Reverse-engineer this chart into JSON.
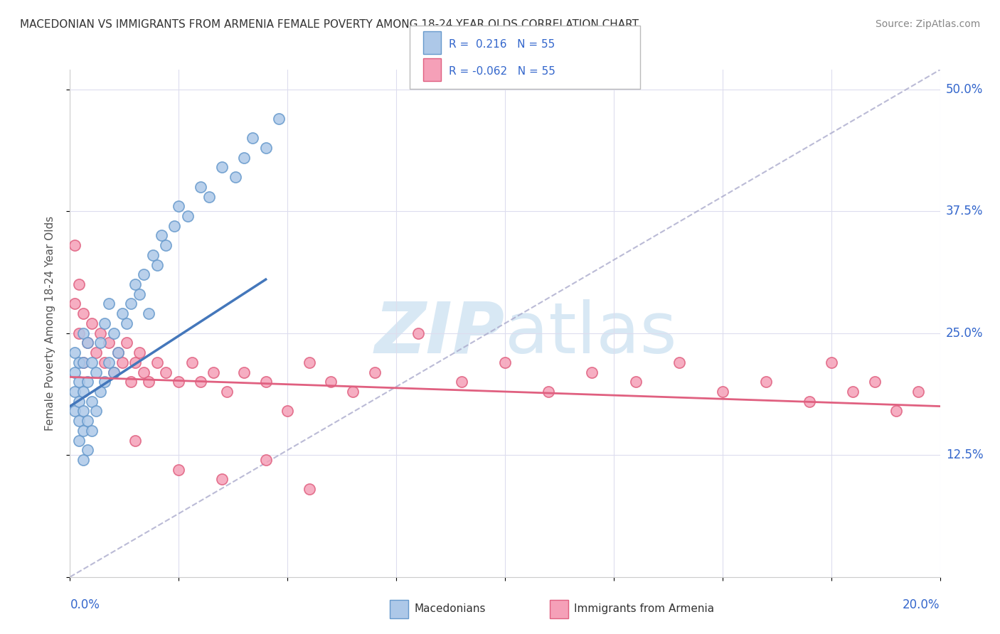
{
  "title": "MACEDONIAN VS IMMIGRANTS FROM ARMENIA FEMALE POVERTY AMONG 18-24 YEAR OLDS CORRELATION CHART",
  "source": "Source: ZipAtlas.com",
  "ylabel": "Female Poverty Among 18-24 Year Olds",
  "yticks": [
    0.0,
    0.125,
    0.25,
    0.375,
    0.5
  ],
  "ytick_labels": [
    "",
    "12.5%",
    "25.0%",
    "37.5%",
    "50.0%"
  ],
  "macedonian_color": "#adc8e8",
  "armenian_color": "#f5a0b8",
  "macedonian_edge_color": "#6699cc",
  "armenian_edge_color": "#e06080",
  "macedonian_line_color": "#4477bb",
  "armenian_line_color": "#e06080",
  "dash_color": "#aaaacc",
  "watermark_color": "#c8dff0",
  "legend_r_mac": "R =  0.216",
  "legend_n_mac": "N = 55",
  "legend_r_arm": "R = -0.062",
  "legend_n_arm": "N = 55",
  "mac_x": [
    0.001,
    0.001,
    0.001,
    0.001,
    0.002,
    0.002,
    0.002,
    0.002,
    0.002,
    0.003,
    0.003,
    0.003,
    0.003,
    0.003,
    0.003,
    0.004,
    0.004,
    0.004,
    0.004,
    0.005,
    0.005,
    0.005,
    0.006,
    0.006,
    0.007,
    0.007,
    0.008,
    0.008,
    0.009,
    0.009,
    0.01,
    0.01,
    0.011,
    0.012,
    0.013,
    0.014,
    0.015,
    0.016,
    0.017,
    0.018,
    0.019,
    0.02,
    0.021,
    0.022,
    0.024,
    0.025,
    0.027,
    0.03,
    0.032,
    0.035,
    0.038,
    0.04,
    0.042,
    0.045,
    0.048
  ],
  "mac_y": [
    0.17,
    0.19,
    0.21,
    0.23,
    0.14,
    0.16,
    0.18,
    0.2,
    0.22,
    0.12,
    0.15,
    0.17,
    0.19,
    0.22,
    0.25,
    0.13,
    0.16,
    0.2,
    0.24,
    0.15,
    0.18,
    0.22,
    0.17,
    0.21,
    0.19,
    0.24,
    0.2,
    0.26,
    0.22,
    0.28,
    0.21,
    0.25,
    0.23,
    0.27,
    0.26,
    0.28,
    0.3,
    0.29,
    0.31,
    0.27,
    0.33,
    0.32,
    0.35,
    0.34,
    0.36,
    0.38,
    0.37,
    0.4,
    0.39,
    0.42,
    0.41,
    0.43,
    0.45,
    0.44,
    0.47
  ],
  "arm_x": [
    0.001,
    0.001,
    0.002,
    0.002,
    0.003,
    0.003,
    0.004,
    0.005,
    0.006,
    0.007,
    0.008,
    0.009,
    0.01,
    0.011,
    0.012,
    0.013,
    0.014,
    0.015,
    0.016,
    0.017,
    0.018,
    0.02,
    0.022,
    0.025,
    0.028,
    0.03,
    0.033,
    0.036,
    0.04,
    0.045,
    0.05,
    0.055,
    0.06,
    0.065,
    0.07,
    0.08,
    0.09,
    0.1,
    0.11,
    0.12,
    0.13,
    0.14,
    0.15,
    0.16,
    0.17,
    0.175,
    0.18,
    0.185,
    0.19,
    0.195,
    0.015,
    0.025,
    0.035,
    0.045,
    0.055
  ],
  "arm_y": [
    0.28,
    0.34,
    0.25,
    0.3,
    0.22,
    0.27,
    0.24,
    0.26,
    0.23,
    0.25,
    0.22,
    0.24,
    0.21,
    0.23,
    0.22,
    0.24,
    0.2,
    0.22,
    0.23,
    0.21,
    0.2,
    0.22,
    0.21,
    0.2,
    0.22,
    0.2,
    0.21,
    0.19,
    0.21,
    0.2,
    0.17,
    0.22,
    0.2,
    0.19,
    0.21,
    0.25,
    0.2,
    0.22,
    0.19,
    0.21,
    0.2,
    0.22,
    0.19,
    0.2,
    0.18,
    0.22,
    0.19,
    0.2,
    0.17,
    0.19,
    0.14,
    0.11,
    0.1,
    0.12,
    0.09
  ]
}
